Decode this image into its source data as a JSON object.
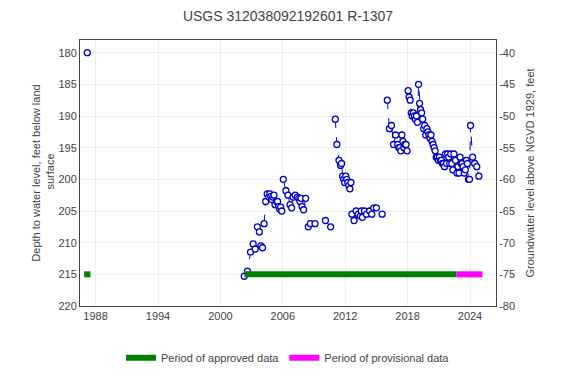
{
  "chart_data": {
    "type": "line",
    "title": "USGS 312038092192601 R-1307",
    "ylabel": "Depth to water level, feet below land\n surface",
    "y2label": "Groundwater level above NGVD 1929, feet",
    "xlim": [
      1986.5,
      2026.5
    ],
    "xticks": [
      1988,
      1994,
      2000,
      2006,
      2012,
      2018,
      2024
    ],
    "ylim": [
      220,
      178
    ],
    "yticks": [
      180,
      185,
      190,
      195,
      200,
      205,
      210,
      215,
      220
    ],
    "y2lim": [
      -80,
      -38
    ],
    "y2ticks": [
      -40,
      -45,
      -50,
      -55,
      -60,
      -65,
      -70,
      -75,
      -80
    ],
    "grid": true,
    "legend": "lower center",
    "color": "#0000cc",
    "line_style": "dashed",
    "marker": "circle",
    "series": [
      {
        "x": [
          1987.2
        ],
        "values": [
          180.0
        ]
      },
      {
        "x": [
          2002.3,
          2002.6,
          2002.9,
          2003.15,
          2003.35
        ],
        "values": [
          215.3,
          214.5,
          211.5,
          210.2,
          211.0
        ]
      },
      {
        "x": [
          2003.55,
          2003.75,
          2003.9,
          2004.05
        ],
        "values": [
          207.5,
          208.3,
          210.5,
          210.8
        ]
      },
      {
        "x": [
          2004.2,
          2004.35,
          2004.5,
          2004.65,
          2004.75,
          2004.85,
          2004.95,
          2005.05,
          2005.15,
          2005.25,
          2005.4,
          2005.5,
          2005.6,
          2005.7,
          2005.8,
          2005.9
        ],
        "values": [
          207.0,
          203.5,
          202.3,
          202.8,
          202.3,
          202.7,
          203.2,
          202.8,
          202.5,
          204.0,
          203.5,
          203.5,
          204.3,
          204.7,
          204.4,
          205.0
        ]
      },
      {
        "x": [
          2006.05,
          2006.3,
          2006.5,
          2006.7,
          2006.85,
          2007.0,
          2007.2,
          2007.4,
          2007.55,
          2007.65,
          2007.75,
          2007.85,
          2008.0,
          2008.2
        ],
        "values": [
          200.0,
          201.8,
          202.5,
          204.0,
          204.5,
          202.8,
          202.5,
          202.8,
          203.0,
          203.5,
          203.0,
          204.3,
          204.8,
          203.0
        ]
      },
      {
        "x": [
          2008.45,
          2008.65,
          2009.1,
          2010.1,
          2010.6
        ],
        "values": [
          207.5,
          207.0,
          207.0,
          206.5,
          207.5
        ]
      },
      {
        "x": [
          2011.05,
          2011.2,
          2011.4,
          2011.55,
          2011.65,
          2011.75,
          2011.85,
          2011.95,
          2012.05,
          2012.15,
          2012.25,
          2012.35,
          2012.45,
          2012.55
        ],
        "values": [
          190.5,
          194.5,
          197.0,
          197.8,
          197.5,
          199.5,
          200.0,
          200.5,
          199.5,
          200.0,
          200.5,
          201.0,
          201.5,
          200.5
        ]
      },
      {
        "x": [
          2012.65,
          2012.85,
          2013.05,
          2013.25,
          2013.45,
          2013.55,
          2013.65,
          2013.85,
          2014.05,
          2014.35,
          2014.55,
          2014.75,
          2015.0,
          2015.55
        ],
        "values": [
          205.5,
          206.5,
          205.0,
          205.5,
          205.8,
          205.0,
          206.0,
          205.0,
          205.5,
          205.0,
          205.5,
          204.5,
          204.5,
          205.5
        ]
      },
      {
        "x": [
          2016.05,
          2016.25,
          2016.45,
          2016.65,
          2016.85,
          2017.05,
          2017.15,
          2017.25,
          2017.35,
          2017.45,
          2017.55,
          2017.65,
          2017.75,
          2017.85,
          2017.95
        ],
        "values": [
          187.5,
          192.0,
          191.5,
          194.5,
          193.0,
          194.5,
          195.0,
          195.0,
          195.5,
          193.0,
          194.0,
          195.0,
          194.5,
          194.5,
          195.5
        ]
      },
      {
        "x": [
          2018.05,
          2018.15,
          2018.25,
          2018.35,
          2018.45,
          2018.55,
          2018.65,
          2018.75,
          2018.85,
          2018.95,
          2019.05,
          2019.15,
          2019.25,
          2019.35,
          2019.45,
          2019.55,
          2019.65,
          2019.75,
          2019.85,
          2019.95,
          2020.05,
          2020.15,
          2020.25,
          2020.35,
          2020.45,
          2020.55,
          2020.65,
          2020.75,
          2020.85,
          2020.95,
          2021.05,
          2021.15,
          2021.25,
          2021.35,
          2021.45,
          2021.55,
          2021.65,
          2021.75,
          2021.85,
          2021.95,
          2022.05,
          2022.15,
          2022.25,
          2022.35,
          2022.45,
          2022.6
        ],
        "values": [
          186.0,
          187.0,
          187.5,
          189.5,
          190.0,
          189.5,
          190.0,
          190.5,
          190.0,
          191.0,
          185.0,
          188.0,
          189.0,
          189.5,
          190.5,
          192.0,
          191.5,
          193.0,
          192.0,
          192.5,
          193.0,
          193.5,
          193.0,
          194.0,
          194.5,
          195.0,
          195.5,
          196.5,
          196.5,
          197.0,
          196.5,
          197.0,
          197.0,
          197.5,
          197.5,
          198.0,
          196.0,
          197.5,
          196.0,
          196.5,
          197.5,
          196.0,
          197.5,
          198.5,
          196.0,
          197.0
        ]
      },
      {
        "x": [
          2022.75,
          2022.85,
          2022.95,
          2023.05,
          2023.15,
          2023.25,
          2023.35,
          2023.45,
          2023.55,
          2023.65,
          2023.75,
          2023.85,
          2023.95,
          2024.05,
          2024.25,
          2024.45,
          2024.65,
          2024.85
        ],
        "values": [
          199.0,
          198.0,
          199.0,
          196.5,
          197.5,
          197.5,
          198.0,
          199.0,
          198.5,
          197.0,
          197.5,
          200.0,
          200.0,
          191.5,
          196.5,
          197.5,
          198.0,
          199.5
        ]
      }
    ],
    "period_y": 215,
    "periods": [
      {
        "name": "Period of approved data",
        "color": "#008000",
        "ranges": [
          [
            1986.9,
            1987.5
          ],
          [
            2002.3,
            2022.7
          ]
        ]
      },
      {
        "name": "Period of provisional data",
        "color": "#ff00ff",
        "ranges": [
          [
            2022.7,
            2025.2
          ]
        ]
      }
    ]
  }
}
